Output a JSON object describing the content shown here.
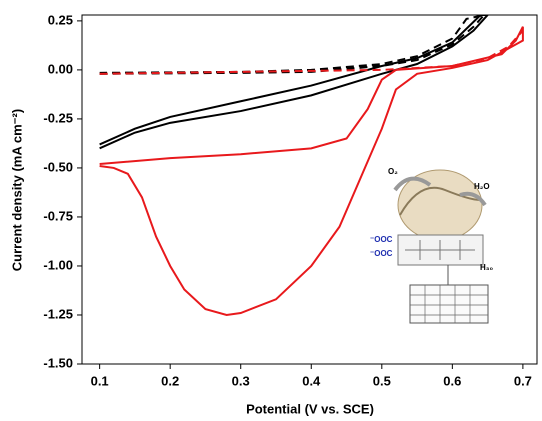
{
  "chart_data": {
    "type": "line",
    "x_label": "Potential (V vs. SCE)",
    "y_label": "Current density (mA cm⁻²)",
    "xlim": [
      0.075,
      0.72
    ],
    "xticks": [
      0.1,
      0.2,
      0.3,
      0.4,
      0.5,
      0.6,
      0.7
    ],
    "ylim": [
      -1.5,
      0.28
    ],
    "yticks": [
      {
        "value": 0.25,
        "label": "0.25"
      },
      {
        "value": 0,
        "label": "0.00"
      },
      {
        "value": -0.25,
        "label": "-0.25"
      },
      {
        "value": -0.5,
        "label": "-0.50"
      },
      {
        "value": -0.75,
        "label": "-0.75"
      },
      {
        "value": -1,
        "label": "-1.00"
      },
      {
        "value": -1.25,
        "label": "-1.25"
      },
      {
        "value": -1.5,
        "label": "-1.50"
      }
    ],
    "series": [
      {
        "color": "#000000",
        "dash": false,
        "x": [
          0.1,
          0.15,
          0.2,
          0.3,
          0.4,
          0.5,
          0.55,
          0.6,
          0.63,
          0.65,
          0.64,
          0.6,
          0.55,
          0.5,
          0.4,
          0.3,
          0.2,
          0.15,
          0.1
        ],
        "values": [
          -0.4,
          -0.32,
          -0.27,
          -0.21,
          -0.13,
          -0.02,
          0.03,
          0.12,
          0.2,
          0.28,
          0.28,
          0.14,
          0.06,
          0.02,
          -0.08,
          -0.16,
          -0.24,
          -0.3,
          -0.38
        ]
      },
      {
        "color": "#000000",
        "dash": true,
        "x": [
          0.1,
          0.3,
          0.4,
          0.5,
          0.55,
          0.6,
          0.63,
          0.645,
          0.62,
          0.6,
          0.55,
          0.5,
          0.4,
          0.3,
          0.1
        ],
        "values": [
          -0.02,
          -0.015,
          -0.01,
          0.02,
          0.05,
          0.13,
          0.22,
          0.28,
          0.26,
          0.16,
          0.07,
          0.03,
          0.0,
          -0.01,
          -0.015
        ]
      },
      {
        "color": "#e8191c",
        "dash": false,
        "x": [
          0.1,
          0.2,
          0.3,
          0.4,
          0.45,
          0.48,
          0.5,
          0.52,
          0.6,
          0.67,
          0.69,
          0.7,
          0.7,
          0.65,
          0.6,
          0.55,
          0.52,
          0.5,
          0.47,
          0.44,
          0.4,
          0.35,
          0.3,
          0.28,
          0.25,
          0.22,
          0.2,
          0.18,
          0.16,
          0.14,
          0.12,
          0.1
        ],
        "values": [
          -0.48,
          -0.45,
          -0.43,
          -0.4,
          -0.35,
          -0.2,
          -0.05,
          0.0,
          0.02,
          0.08,
          0.15,
          0.22,
          0.15,
          0.05,
          0.01,
          -0.02,
          -0.1,
          -0.3,
          -0.55,
          -0.8,
          -1.0,
          -1.17,
          -1.24,
          -1.25,
          -1.22,
          -1.12,
          -1.0,
          -0.85,
          -0.65,
          -0.53,
          -0.5,
          -0.49
        ]
      },
      {
        "color": "#e8191c",
        "dash": true,
        "x": [
          0.1,
          0.3,
          0.5,
          0.55,
          0.6,
          0.65,
          0.68,
          0.7
        ],
        "values": [
          -0.02,
          -0.01,
          0.0,
          0.01,
          0.02,
          0.06,
          0.12,
          0.2
        ]
      }
    ],
    "annotations": [
      "O₂",
      "H₂O",
      "⁻OOC",
      "⁻OOC",
      "H₃₀"
    ]
  }
}
